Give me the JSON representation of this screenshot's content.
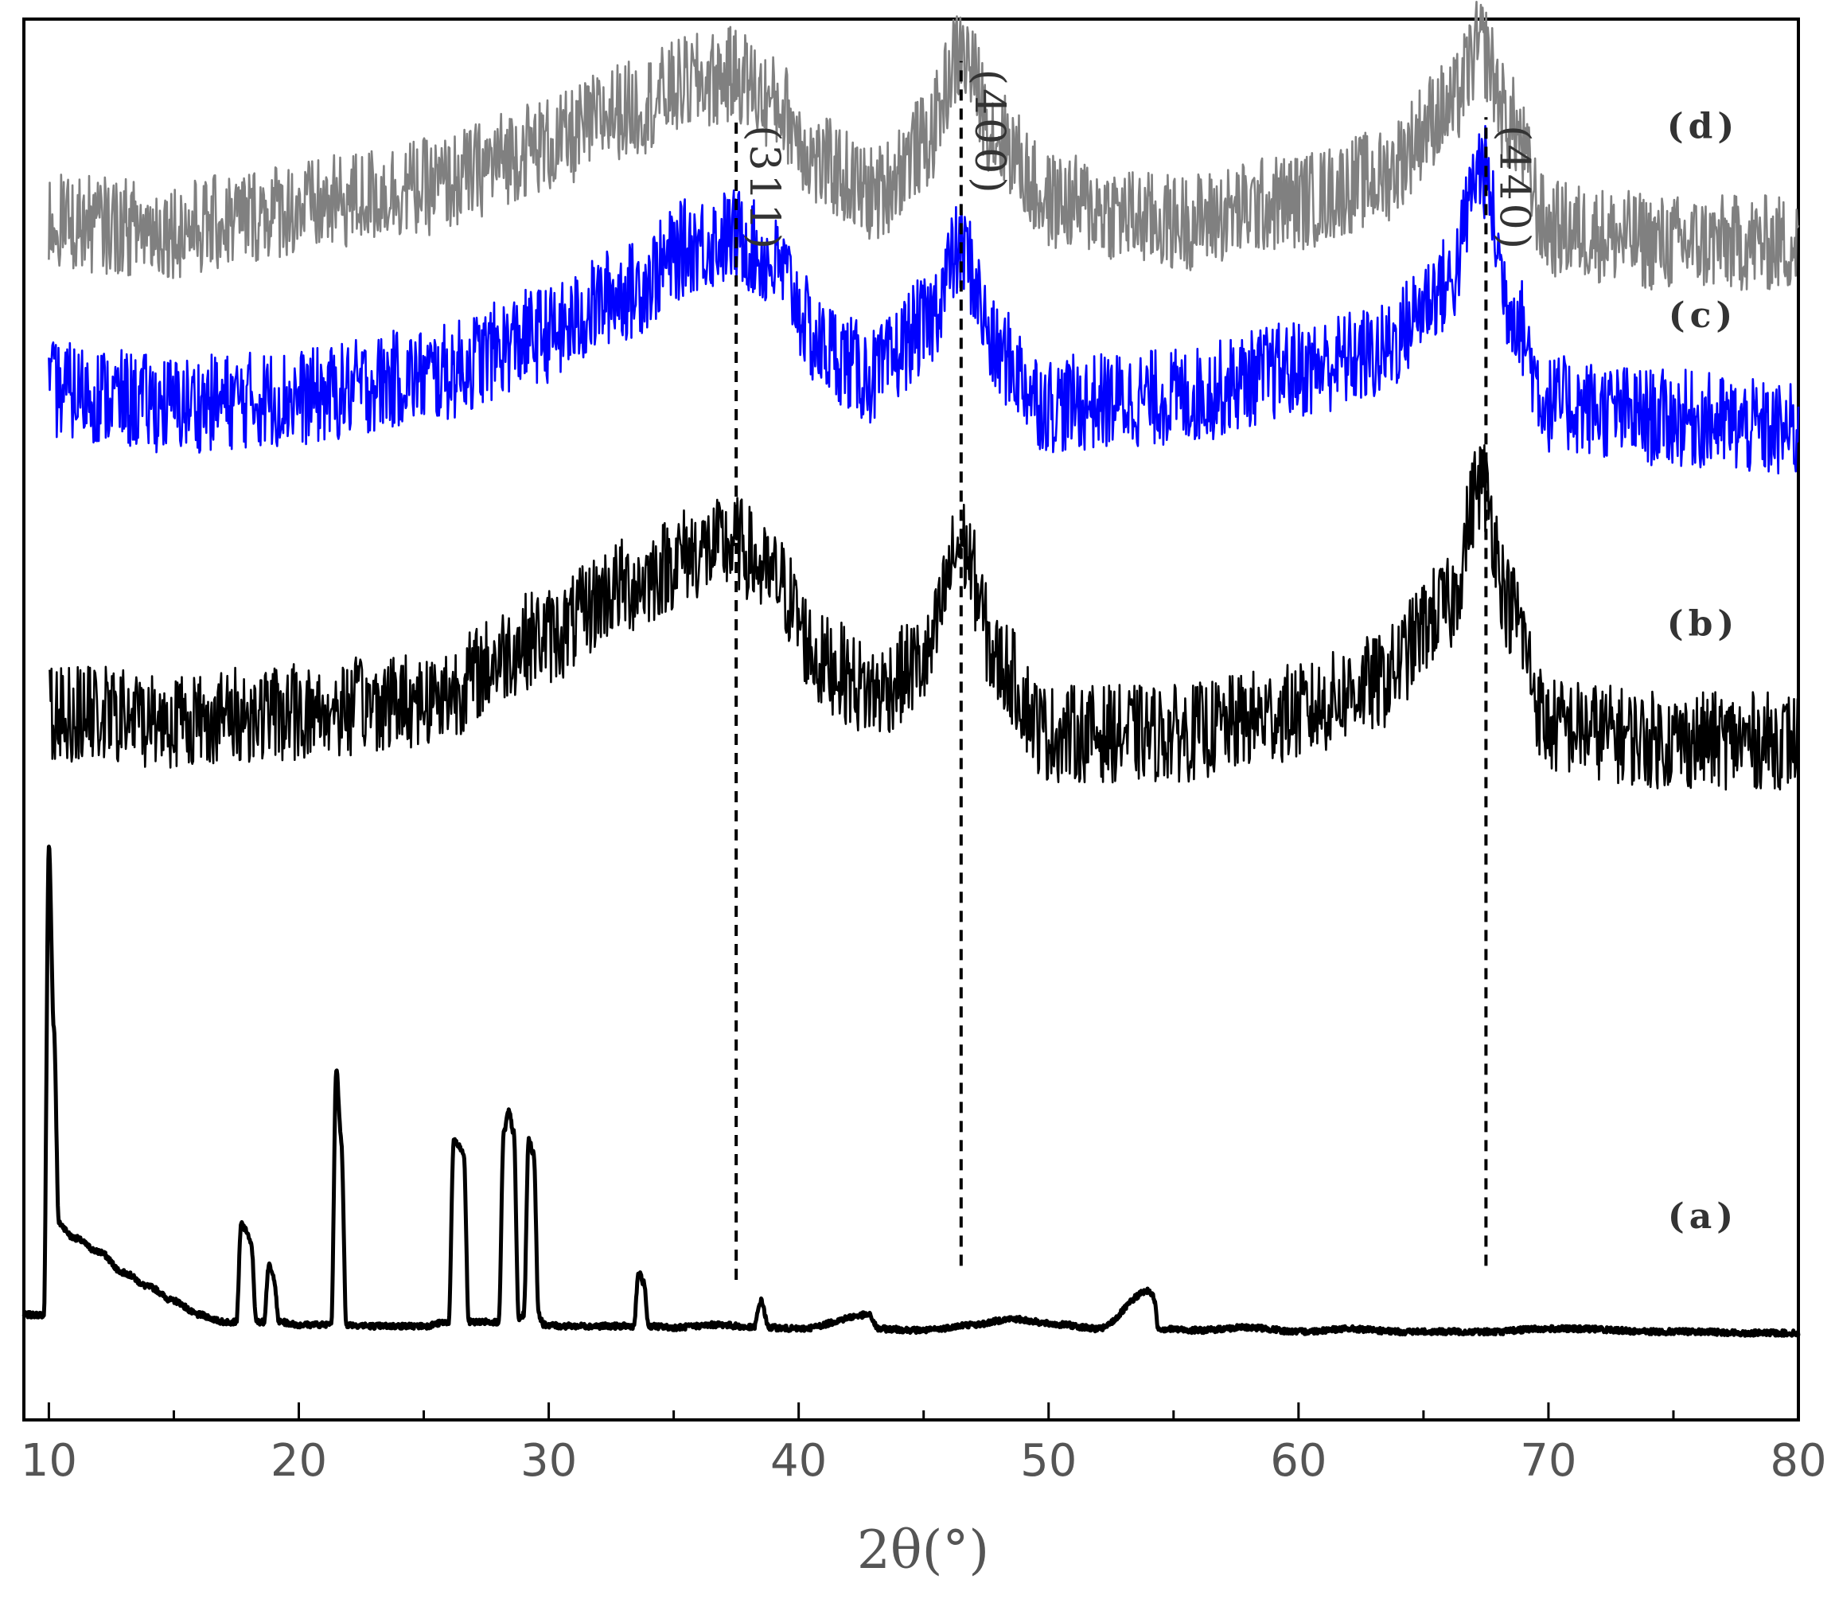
{
  "chart_data": {
    "type": "line",
    "title": "",
    "xlabel": "2θ(°)",
    "ylabel": "",
    "xlim": [
      9,
      80
    ],
    "ylim": [
      0,
      100
    ],
    "xticks": [
      10,
      20,
      30,
      40,
      50,
      60,
      70,
      80
    ],
    "y_ticks_shown": false,
    "grid": false,
    "legend": "none",
    "series": [
      {
        "name": "(a)",
        "color": "#000000",
        "baseline": 6,
        "noise": 0.2,
        "x": [
          9.0,
          9.8,
          10.0,
          10.2,
          10.4,
          11,
          12,
          13,
          14,
          15,
          16,
          17,
          17.5,
          17.7,
          17.9,
          18.1,
          18.3,
          18.6,
          18.8,
          19.0,
          19.2,
          20,
          21,
          21.3,
          21.5,
          21.7,
          21.9,
          23,
          25,
          26.0,
          26.2,
          26.4,
          26.6,
          26.8,
          27.5,
          28.0,
          28.2,
          28.4,
          28.6,
          28.8,
          29.0,
          29.2,
          29.4,
          29.6,
          29.8,
          30.5,
          33.4,
          33.6,
          33.8,
          34.0,
          35,
          36.8,
          38.2,
          38.5,
          38.8,
          40,
          42.8,
          43.2,
          45,
          47,
          48.5,
          50.5,
          52,
          54.0,
          54.2,
          54.4,
          56,
          58,
          60,
          62,
          64,
          66,
          68,
          69.5,
          71.5,
          74,
          76,
          78,
          80
        ],
        "y": [
          1.5,
          1.5,
          35,
          22,
          8,
          7,
          6,
          4.5,
          3.5,
          2.5,
          1.5,
          1,
          1,
          8,
          7.5,
          6.5,
          1,
          1,
          5,
          4.2,
          1,
          0.8,
          0.8,
          1,
          19,
          14,
          0.8,
          0.7,
          0.7,
          1,
          14,
          13.5,
          13,
          1,
          1,
          1,
          14.5,
          16,
          14.5,
          1.2,
          1.5,
          14,
          13,
          1.5,
          0.8,
          0.7,
          0.7,
          4.5,
          3.8,
          0.7,
          0.6,
          0.8,
          0.6,
          2.5,
          0.6,
          0.5,
          1.5,
          0.5,
          0.4,
          0.8,
          1.2,
          0.8,
          0.5,
          3.2,
          2.8,
          0.5,
          0.4,
          0.6,
          0.3,
          0.5,
          0.3,
          0.3,
          0.3,
          0.5,
          0.5,
          0.3,
          0.3,
          0.2,
          0.2
        ]
      },
      {
        "name": "(b)",
        "color": "#000000",
        "baseline": 46,
        "noise": 3.5,
        "x": [
          10,
          15,
          20,
          25,
          30,
          33,
          36,
          37.5,
          39,
          41,
          43,
          45,
          46.5,
          48,
          50,
          55,
          60,
          63,
          66,
          67.3,
          68.5,
          70,
          75,
          80
        ],
        "y": [
          4.5,
          4,
          4.5,
          5.5,
          10,
          13.5,
          16,
          16.5,
          14,
          8,
          6,
          8,
          16.5,
          8,
          3,
          3,
          4.5,
          6.5,
          12,
          21,
          12,
          3.5,
          2.5,
          2.5
        ]
      },
      {
        "name": "(c)",
        "color": "#0000ff",
        "baseline": 67.5,
        "noise": 3.5,
        "x": [
          10,
          15,
          20,
          25,
          30,
          33,
          36,
          37.5,
          39,
          41,
          43,
          45,
          46.5,
          48,
          50,
          55,
          60,
          63,
          66,
          67.3,
          68.5,
          70,
          75,
          80
        ],
        "y": [
          6,
          5,
          5.5,
          7,
          10,
          13,
          16.5,
          17,
          15,
          9,
          7,
          10.5,
          16,
          8.5,
          5,
          5.5,
          7.5,
          8.5,
          13.5,
          22,
          12,
          5,
          4,
          3
        ]
      },
      {
        "name": "(d)",
        "color": "#808080",
        "baseline": 83,
        "noise": 3.5,
        "x": [
          10,
          15,
          20,
          25,
          30,
          33,
          36,
          37.5,
          39,
          41,
          43,
          45,
          46.5,
          48,
          50,
          55,
          60,
          63,
          66,
          67.3,
          68.5,
          70,
          75,
          80
        ],
        "y": [
          2.5,
          2,
          3.5,
          5,
          8,
          10.5,
          12.5,
          13,
          11,
          6.5,
          4.5,
          8,
          14.5,
          8.5,
          4,
          2.5,
          4,
          5.5,
          10.5,
          15,
          9.5,
          2,
          1,
          1
        ]
      }
    ],
    "reference_lines": [
      {
        "label": "(311)",
        "x": 37.5,
        "y_from": 10,
        "y_to": 93
      },
      {
        "label": "(400)",
        "x": 46.5,
        "y_from": 11,
        "y_to": 97
      },
      {
        "label": "(440)",
        "x": 67.5,
        "y_from": 11,
        "y_to": 93
      }
    ]
  }
}
